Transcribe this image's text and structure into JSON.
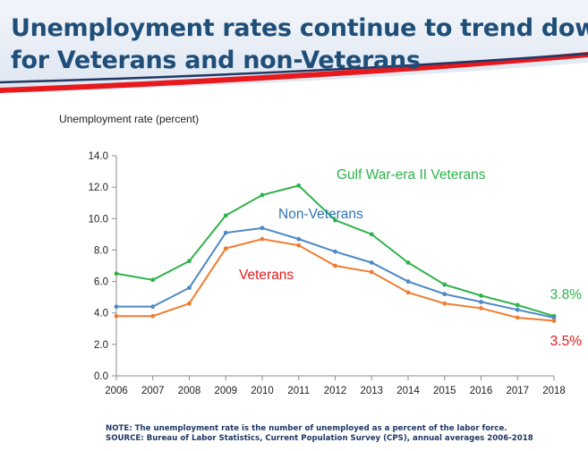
{
  "header": {
    "title_line1": "Unemployment rates continue to trend down -",
    "title_line2": "for Veterans and non-Veterans"
  },
  "chart_data": {
    "type": "line",
    "title": "",
    "ylabel": "Unemployment rate (percent)",
    "xlabel": "",
    "x": [
      2006,
      2007,
      2008,
      2009,
      2010,
      2011,
      2012,
      2013,
      2014,
      2015,
      2016,
      2017,
      2018
    ],
    "x_tick_labels": [
      "2006",
      "2007",
      "2008",
      "2009",
      "2010",
      "2011",
      "2012",
      "2013",
      "2014",
      "2015",
      "2016",
      "2017",
      "2018"
    ],
    "ylim": [
      0,
      14
    ],
    "y_ticks": [
      0,
      2,
      4,
      6,
      8,
      10,
      12,
      14
    ],
    "y_tick_labels": [
      "0.0",
      "2.0",
      "4.0",
      "6.0",
      "8.0",
      "10.0",
      "12.0",
      "14.0"
    ],
    "grid": false,
    "series": [
      {
        "name": "Gulf War-era II Veterans",
        "color": "#2eb24a",
        "values": [
          6.5,
          6.1,
          7.3,
          10.2,
          11.5,
          12.1,
          9.9,
          9.0,
          7.2,
          5.8,
          5.1,
          4.5,
          3.8
        ],
        "end_label": "3.8%"
      },
      {
        "name": "Non-Veterans",
        "color": "#4f89c5",
        "values": [
          4.4,
          4.4,
          5.6,
          9.1,
          9.4,
          8.7,
          7.9,
          7.2,
          6.0,
          5.2,
          4.7,
          4.2,
          3.7
        ],
        "end_label": ""
      },
      {
        "name": "Veterans",
        "color": "#ef7d31",
        "values": [
          3.8,
          3.8,
          4.6,
          8.1,
          8.7,
          8.3,
          7.0,
          6.6,
          5.3,
          4.6,
          4.3,
          3.7,
          3.5
        ],
        "end_label": "3.5%"
      }
    ],
    "series_label_colors": {
      "Gulf War-era II Veterans": "#2eb24a",
      "Non-Veterans": "#2e75b6",
      "Veterans": "#e8191d"
    },
    "end_label_colors": {
      "3.8%": "#2eb24a",
      "3.5%": "#e8191d"
    }
  },
  "footer": {
    "note": "NOTE: The unemployment rate is the number of unemployed as a percent of the labor force.",
    "source": "SOURCE:  Bureau of Labor Statistics, Current Population Survey (CPS), annual averages 2006-2018"
  }
}
